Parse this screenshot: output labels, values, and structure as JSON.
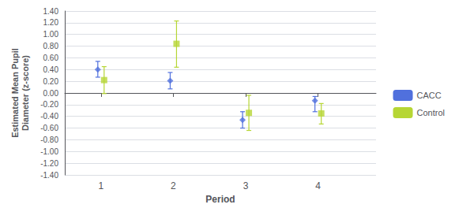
{
  "chart_data": {
    "type": "scatter",
    "x": [
      1,
      2,
      3,
      4
    ],
    "xlabel": "Period",
    "ylabel": "Estimated Mean Pupil\nDiameter (z-score)",
    "xlim": [
      0.5,
      4.8
    ],
    "xticks": [
      1,
      2,
      3,
      4
    ],
    "ylim": [
      -1.4,
      1.4
    ],
    "yticks": [
      {
        "value": -1.4,
        "label": "-1.40"
      },
      {
        "value": -1.2,
        "label": "-1.20"
      },
      {
        "value": -1.0,
        "label": "-1.00"
      },
      {
        "value": -0.8,
        "label": "-0.80"
      },
      {
        "value": -0.6,
        "label": "-0.60"
      },
      {
        "value": -0.4,
        "label": "-0.40"
      },
      {
        "value": -0.2,
        "label": "-0.20"
      },
      {
        "value": 0,
        "label": "0.00"
      },
      {
        "value": 0.2,
        "label": "0.20"
      },
      {
        "value": 0.4,
        "label": "0.40"
      },
      {
        "value": 0.6,
        "label": "0.60"
      },
      {
        "value": 0.8,
        "label": "0.80"
      },
      {
        "value": 1.0,
        "label": "1.00"
      },
      {
        "value": 1.2,
        "label": "1.20"
      },
      {
        "value": 1.4,
        "label": "1.40"
      }
    ],
    "grid": true,
    "legend": "right",
    "series": [
      {
        "name": "CACC",
        "marker": "diamond",
        "values": [
          0.4,
          0.21,
          -0.46,
          -0.13
        ],
        "lower": [
          0.27,
          0.07,
          -0.6,
          -0.32
        ],
        "upper": [
          0.54,
          0.35,
          -0.32,
          -0.06
        ]
      },
      {
        "name": "Control",
        "marker": "square",
        "values": [
          0.22,
          0.84,
          -0.34,
          -0.35
        ],
        "lower": [
          -0.01,
          0.44,
          -0.64,
          -0.53
        ],
        "upper": [
          0.45,
          1.23,
          -0.04,
          -0.18
        ]
      }
    ]
  }
}
